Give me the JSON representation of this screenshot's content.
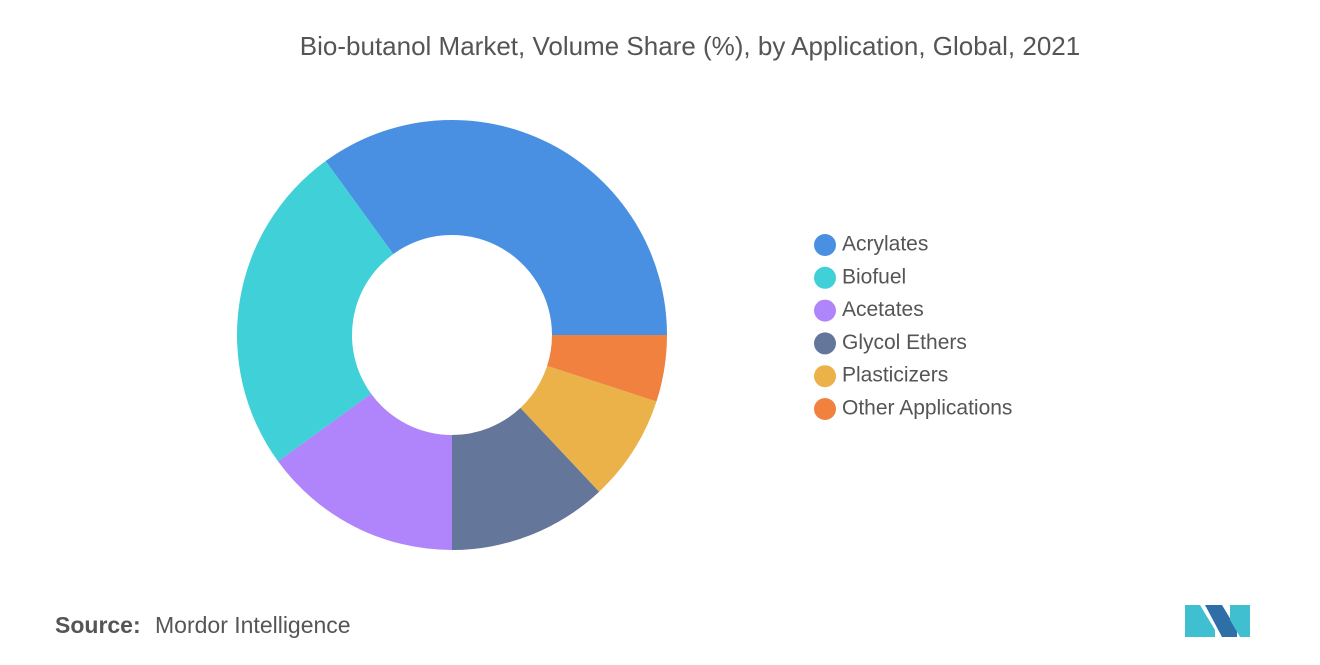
{
  "chart_data": {
    "type": "donut",
    "title": "Bio-butanol Market, Volume Share (%), by Application, Global, 2021",
    "categories": [
      "Acrylates",
      "Biofuel",
      "Acetates",
      "Glycol Ethers",
      "Plasticizers",
      "Other Applications"
    ],
    "values": [
      35,
      25,
      15,
      12,
      8,
      5
    ],
    "colors": [
      "#4a90e2",
      "#40d0d8",
      "#b084fb",
      "#64769a",
      "#ebb24a",
      "#f0813f"
    ]
  },
  "footer": {
    "source_label": "Source:",
    "source": "Mordor Intelligence"
  }
}
